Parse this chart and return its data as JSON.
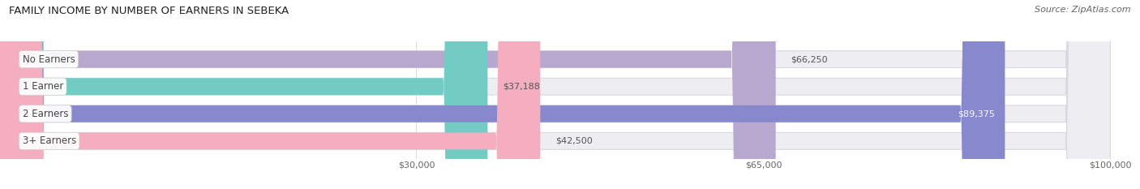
{
  "title": "FAMILY INCOME BY NUMBER OF EARNERS IN SEBEKA",
  "source": "Source: ZipAtlas.com",
  "categories": [
    "No Earners",
    "1 Earner",
    "2 Earners",
    "3+ Earners"
  ],
  "values": [
    66250,
    37188,
    89375,
    42500
  ],
  "bar_colors": [
    "#b8a8d0",
    "#72ccc4",
    "#8888cc",
    "#f4aec0"
  ],
  "bar_bg_color": "#ededf2",
  "bar_border_color": "#d8d8e0",
  "xlim_min": -12000,
  "xlim_max": 103000,
  "data_min": 0,
  "data_max": 100000,
  "xticks": [
    30000,
    65000,
    100000
  ],
  "xtick_labels": [
    "$30,000",
    "$65,000",
    "$100,000"
  ],
  "label_inside_threshold": 70000,
  "figsize": [
    14.06,
    2.33
  ],
  "dpi": 100,
  "title_fontsize": 9.5,
  "source_fontsize": 8,
  "bar_label_fontsize": 8,
  "category_fontsize": 8.5,
  "tick_fontsize": 8,
  "bar_height": 0.62,
  "background_color": "#ffffff",
  "grid_color": "#cccccc",
  "label_color_inside": "white",
  "label_color_outside": "#555555",
  "category_text_color": "#444444"
}
